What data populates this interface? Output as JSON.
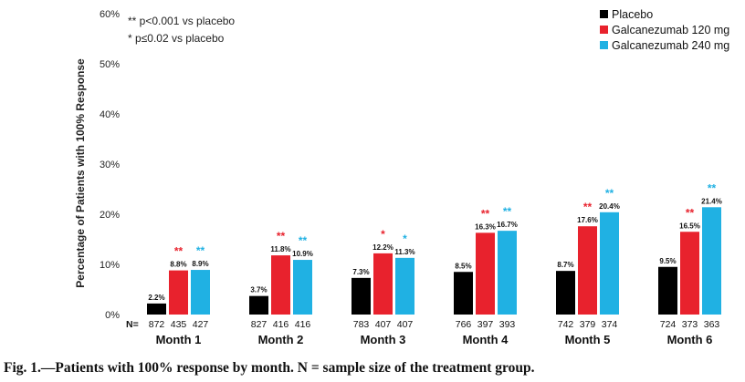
{
  "chart_data": {
    "type": "bar",
    "title": "",
    "ylabel": "Percentage of Patients with 100% Response",
    "xlabel": "",
    "ylim": [
      0,
      60
    ],
    "yticks": [
      0,
      10,
      20,
      30,
      40,
      50,
      60
    ],
    "ytick_labels": [
      "0%",
      "10%",
      "20%",
      "30%",
      "40%",
      "50%",
      "60%"
    ],
    "categories": [
      "Month 1",
      "Month 2",
      "Month 3",
      "Month 4",
      "Month 5",
      "Month 6"
    ],
    "n_prefix": "N=",
    "series": [
      {
        "name": "Placebo",
        "color": "#000000",
        "values": [
          2.2,
          3.7,
          7.3,
          8.5,
          8.7,
          9.5
        ],
        "labels": [
          "2.2%",
          "3.7%",
          "7.3%",
          "8.5%",
          "8.7%",
          "9.5%"
        ],
        "n": [
          "872",
          "827",
          "783",
          "766",
          "742",
          "724"
        ],
        "sig": [
          "",
          "",
          "",
          "",
          "",
          ""
        ]
      },
      {
        "name": "Galcanezumab 120 mg",
        "color": "#e8222d",
        "values": [
          8.8,
          11.8,
          12.2,
          16.3,
          17.6,
          16.5
        ],
        "labels": [
          "8.8%",
          "11.8%",
          "12.2%",
          "16.3%",
          "17.6%",
          "16.5%"
        ],
        "n": [
          "435",
          "416",
          "407",
          "397",
          "379",
          "373"
        ],
        "sig": [
          "**",
          "**",
          "*",
          "**",
          "**",
          "**"
        ]
      },
      {
        "name": "Galcanezumab 240 mg",
        "color": "#20b1e3",
        "values": [
          8.9,
          10.9,
          11.3,
          16.7,
          20.4,
          21.4
        ],
        "labels": [
          "8.9%",
          "10.9%",
          "11.3%",
          "16.7%",
          "20.4%",
          "21.4%"
        ],
        "n": [
          "427",
          "416",
          "407",
          "393",
          "374",
          "363"
        ],
        "sig": [
          "**",
          "**",
          "*",
          "**",
          "**",
          "**"
        ]
      }
    ],
    "annotations": [
      "** p<0.001 vs placebo",
      "*  p≤0.02 vs placebo"
    ],
    "legend_position": "top-right",
    "grid": false
  },
  "caption": "Fig. 1.—Patients with 100% response by month. N = sample size of the treatment group."
}
